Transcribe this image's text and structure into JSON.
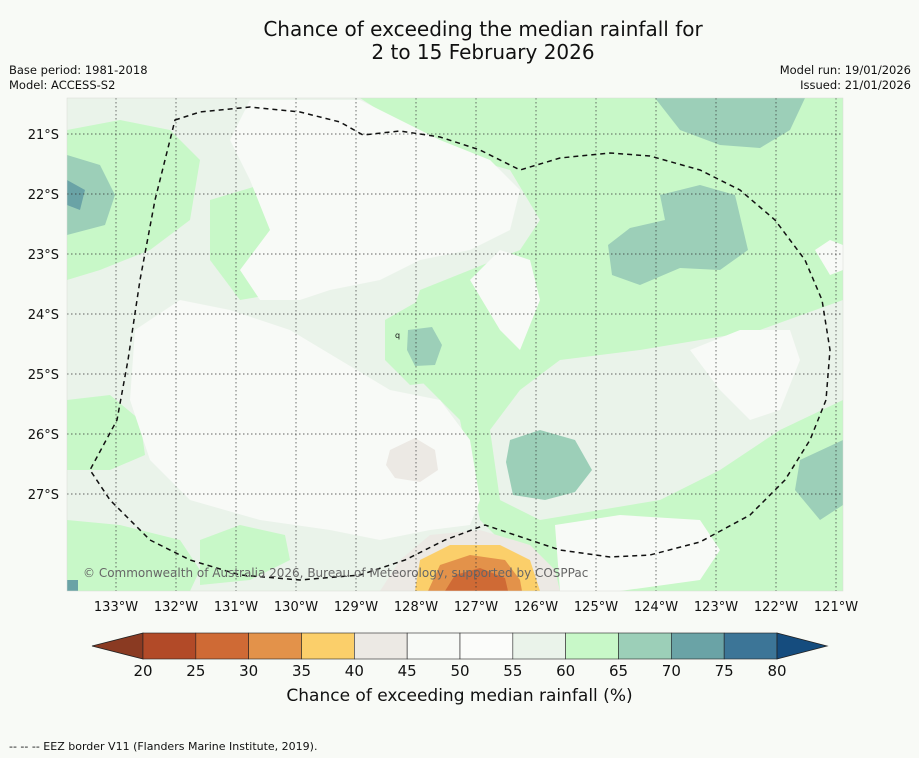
{
  "title": {
    "line1": "Chance of exceeding the median rainfall for",
    "line2": "2 to 15 February 2026"
  },
  "meta": {
    "base_period": "Base period: 1981-2018",
    "model": "Model: ACCESS-S2",
    "model_run": "Model run: 19/01/2026",
    "issued": "Issued: 21/01/2026"
  },
  "map": {
    "lat_labels": [
      "21°S",
      "22°S",
      "23°S",
      "24°S",
      "25°S",
      "26°S",
      "27°S"
    ],
    "lon_labels": [
      "133°W",
      "132°W",
      "131°W",
      "130°W",
      "129°W",
      "128°W",
      "127°W",
      "126°W",
      "125°W",
      "124°W",
      "123°W",
      "122°W",
      "121°W"
    ],
    "copyright": "© Commonwealth of Australia 2026, Bureau of Meteorology, supported by COSPPac",
    "point_label": "q"
  },
  "colorbar": {
    "ticks": [
      "20",
      "25",
      "30",
      "35",
      "40",
      "45",
      "50",
      "55",
      "60",
      "65",
      "70",
      "75",
      "80"
    ],
    "label": "Chance of exceeding median rainfall (%)",
    "colors": [
      "#8a3a22",
      "#b24a28",
      "#cf6a35",
      "#e3924a",
      "#fbcf6a",
      "#ece9e4",
      "#f8faf7",
      "#fbfcfa",
      "#eaf3ea",
      "#c8f8c8",
      "#9ccfb8",
      "#6aa3a6",
      "#3c7597",
      "#154c7e"
    ]
  },
  "footer": "-- -- -- EEZ border V11 (Flanders Marine Institute, 2019)."
}
